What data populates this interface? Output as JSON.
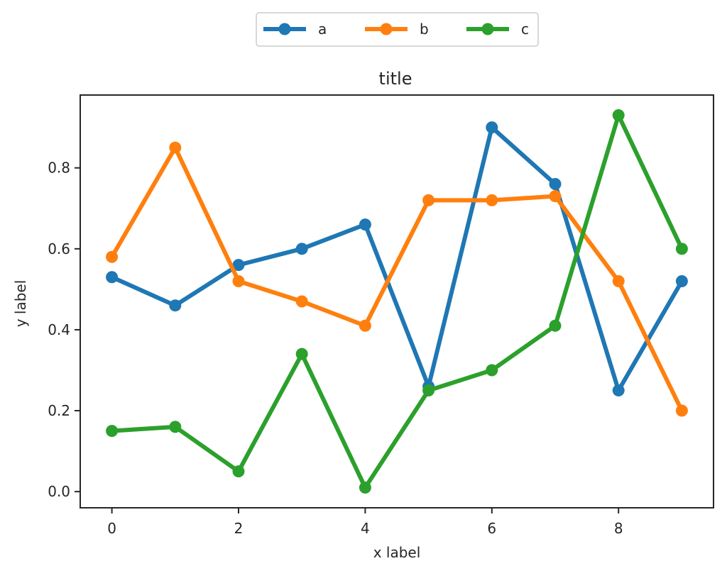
{
  "chart_data": {
    "type": "line",
    "title": "title",
    "xlabel": "x label",
    "ylabel": "y label",
    "x": [
      0,
      1,
      2,
      3,
      4,
      5,
      6,
      7,
      8,
      9
    ],
    "xlim": [
      -0.5,
      9.5
    ],
    "ylim": [
      -0.04,
      0.98
    ],
    "xticks": [
      0,
      2,
      4,
      6,
      8
    ],
    "xtick_labels": [
      "0",
      "2",
      "4",
      "6",
      "8"
    ],
    "yticks": [
      0.0,
      0.2,
      0.4,
      0.6,
      0.8
    ],
    "ytick_labels": [
      "0.0",
      "0.2",
      "0.4",
      "0.6",
      "0.8"
    ],
    "grid": false,
    "legend": {
      "placement": "top-center-outside",
      "columns": 3
    },
    "series": [
      {
        "name": "a",
        "color": "#1f77b4",
        "marker": "circle",
        "values": [
          0.53,
          0.46,
          0.56,
          0.6,
          0.66,
          0.26,
          0.9,
          0.76,
          0.25,
          0.52
        ]
      },
      {
        "name": "b",
        "color": "#ff7f0e",
        "marker": "circle",
        "values": [
          0.58,
          0.85,
          0.52,
          0.47,
          0.41,
          0.72,
          0.72,
          0.73,
          0.52,
          0.2
        ]
      },
      {
        "name": "c",
        "color": "#2ca02c",
        "marker": "circle",
        "values": [
          0.15,
          0.16,
          0.05,
          0.34,
          0.01,
          0.25,
          0.3,
          0.41,
          0.93,
          0.6
        ]
      }
    ]
  }
}
